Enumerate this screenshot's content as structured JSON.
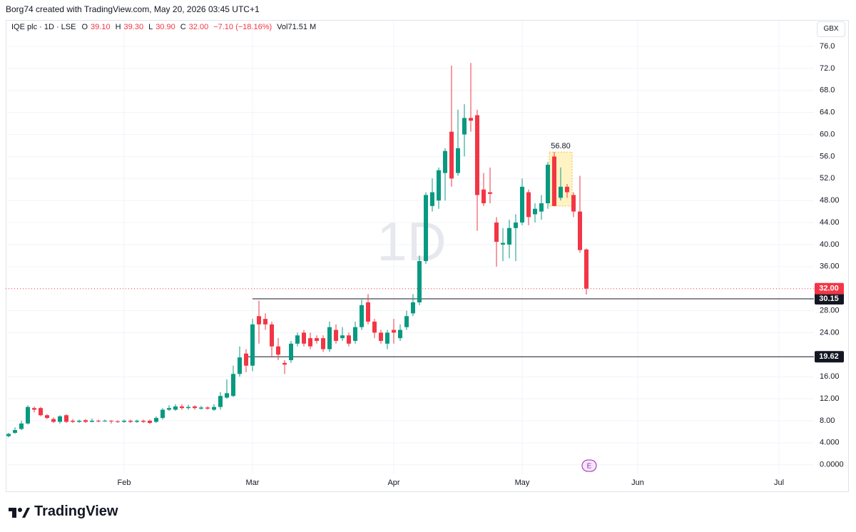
{
  "page": {
    "attribution": "Borg74 created with TradingView.com, May 20, 2026 03:45 UTC+1",
    "logo": "TradingView"
  },
  "chart_data": {
    "type": "candlestick",
    "symbol": "IQE plc · 1D · LSE",
    "ohlc_labels": [
      "O",
      "H",
      "L",
      "C"
    ],
    "ohlc_values": [
      "39.10",
      "39.30",
      "30.90",
      "32.00"
    ],
    "change": "−7.10 (−18.16%)",
    "volume": "Vol71.51 M",
    "currency": "GBX",
    "watermark": "1D",
    "up_color": "#089981",
    "down_color": "#f23645",
    "grid": true,
    "categories": [
      null,
      null,
      null,
      null,
      null,
      null,
      null,
      null,
      null,
      null,
      null,
      null,
      null,
      null,
      null,
      null,
      null,
      null,
      "Feb",
      null,
      null,
      null,
      null,
      null,
      null,
      null,
      null,
      null,
      null,
      null,
      null,
      null,
      null,
      null,
      null,
      null,
      null,
      null,
      "Mar",
      null,
      null,
      null,
      null,
      null,
      null,
      null,
      null,
      null,
      null,
      null,
      null,
      null,
      null,
      null,
      null,
      null,
      null,
      null,
      null,
      null,
      "Apr",
      null,
      null,
      null,
      null,
      null,
      null,
      null,
      null,
      null,
      null,
      null,
      null,
      null,
      null,
      null,
      null,
      null,
      null,
      null,
      "May",
      null,
      null,
      null,
      null,
      null,
      null,
      null,
      null,
      null,
      null,
      null,
      null,
      null,
      null,
      null,
      null,
      null,
      "Jun",
      null,
      null,
      null,
      null,
      null,
      null,
      null,
      null,
      null,
      null,
      null,
      null,
      null,
      null,
      null,
      null,
      null,
      null,
      null,
      null,
      null,
      "Jul",
      null,
      null,
      null,
      null,
      null
    ],
    "open": [
      5.2,
      5.8,
      6.5,
      7.5,
      10.3,
      10.3,
      9.0,
      8.3,
      7.8,
      9.0,
      8.0,
      7.8,
      8.1,
      7.8,
      8.0,
      7.9,
      8.0,
      7.9,
      7.8,
      8.0,
      7.8,
      8.0,
      8.0,
      7.8,
      8.5,
      10.0,
      10.0,
      10.6,
      10.3,
      10.6,
      10.2,
      10.4,
      10.0,
      10.5,
      12.2,
      12.5,
      16.5,
      20.2,
      18.0,
      27.0,
      26.5,
      25.5,
      21.5,
      18.5,
      19.0,
      22.0,
      24.0,
      23.0,
      23.0,
      23.0,
      21.0,
      24.5,
      23.0,
      23.5,
      22.5,
      25.0,
      29.5,
      26.0,
      24.0,
      22.0,
      24.5,
      23.0,
      25.0,
      27.5,
      29.5,
      37.0,
      47.0,
      48.0,
      53.0,
      60.5,
      53.0,
      60.0,
      63.0,
      63.5,
      50.0,
      49.5,
      44.0,
      40.0,
      40.0,
      43.0,
      44.0,
      49.5,
      45.5,
      46.0,
      47.5,
      56.0,
      48.5,
      50.5,
      49.0,
      46.0,
      39.1,
      null,
      null,
      null,
      null,
      null,
      null,
      null,
      null,
      null,
      null,
      null,
      null,
      null,
      null,
      null,
      null,
      null,
      null,
      null,
      null,
      null,
      null,
      null,
      null,
      null,
      null,
      null,
      null,
      null,
      null,
      null,
      null,
      null,
      null,
      null
    ],
    "high": [
      5.8,
      6.8,
      8.0,
      10.8,
      10.6,
      10.5,
      9.2,
      8.6,
      9.0,
      9.2,
      8.3,
      8.2,
      8.3,
      8.4,
      8.2,
      8.2,
      8.1,
      8.1,
      8.2,
      8.2,
      8.2,
      8.2,
      8.2,
      8.8,
      10.3,
      10.8,
      11.0,
      11.0,
      10.9,
      10.8,
      10.7,
      10.6,
      11.0,
      13.2,
      15.5,
      18.0,
      21.5,
      21.0,
      26.5,
      29.8,
      27.5,
      26.0,
      23.0,
      19.0,
      22.5,
      24.0,
      24.5,
      24.0,
      23.5,
      23.5,
      26.0,
      25.5,
      25.0,
      24.0,
      26.0,
      30.0,
      31.0,
      26.5,
      24.5,
      24.5,
      26.5,
      25.5,
      28.0,
      31.0,
      38.0,
      49.5,
      52.0,
      54.0,
      57.5,
      72.5,
      64.5,
      65.5,
      73.0,
      64.5,
      53.0,
      54.0,
      45.0,
      43.0,
      44.5,
      45.5,
      52.0,
      50.0,
      47.5,
      49.0,
      55.0,
      56.8,
      54.0,
      51.0,
      49.5,
      52.5,
      39.3,
      null,
      null,
      null,
      null,
      null,
      null,
      null,
      null,
      null,
      null,
      null,
      null,
      null,
      null,
      null,
      null,
      null,
      null,
      null,
      null,
      null,
      null,
      null,
      null,
      null,
      null,
      null,
      null,
      null,
      null,
      null,
      null,
      null,
      null,
      null
    ],
    "low": [
      5.0,
      5.6,
      6.3,
      7.3,
      9.5,
      8.8,
      8.3,
      7.6,
      7.5,
      7.6,
      7.6,
      7.6,
      7.6,
      7.7,
      7.7,
      7.8,
      7.5,
      7.6,
      7.6,
      7.6,
      7.6,
      7.6,
      7.4,
      7.6,
      8.2,
      9.8,
      9.8,
      10.0,
      10.0,
      10.0,
      10.0,
      10.0,
      9.8,
      10.0,
      12.0,
      12.3,
      16.0,
      16.8,
      17.0,
      22.0,
      24.5,
      19.5,
      19.0,
      16.5,
      18.5,
      21.5,
      21.5,
      21.0,
      22.0,
      20.5,
      20.5,
      22.0,
      22.5,
      21.5,
      22.0,
      24.5,
      25.5,
      23.0,
      22.0,
      21.0,
      22.0,
      22.5,
      24.5,
      27.0,
      29.0,
      36.5,
      46.0,
      46.5,
      48.0,
      50.5,
      52.5,
      56.0,
      60.5,
      42.5,
      47.0,
      47.5,
      36.0,
      37.0,
      37.5,
      37.0,
      43.5,
      43.5,
      44.0,
      44.5,
      46.5,
      47.0,
      48.0,
      48.5,
      45.0,
      38.5,
      30.9,
      null,
      null,
      null,
      null,
      null,
      null,
      null,
      null,
      null,
      null,
      null,
      null,
      null,
      null,
      null,
      null,
      null,
      null,
      null,
      null,
      null,
      null,
      null,
      null,
      null,
      null,
      null,
      null,
      null,
      null,
      null,
      null,
      null,
      null,
      null
    ],
    "close": [
      5.6,
      6.3,
      7.5,
      10.5,
      10.0,
      9.0,
      8.5,
      7.8,
      8.8,
      7.8,
      7.8,
      8.0,
      7.8,
      8.0,
      7.9,
      8.0,
      7.9,
      7.8,
      8.0,
      7.8,
      8.0,
      7.8,
      7.6,
      8.5,
      10.0,
      10.3,
      10.6,
      10.3,
      10.5,
      10.3,
      10.4,
      10.2,
      10.5,
      12.5,
      13.0,
      16.5,
      19.5,
      18.0,
      25.5,
      25.5,
      25.5,
      21.5,
      20.0,
      18.2,
      22.0,
      23.5,
      22.0,
      21.5,
      22.5,
      21.0,
      25.0,
      22.5,
      23.5,
      22.0,
      25.0,
      29.0,
      26.0,
      24.0,
      22.5,
      24.0,
      24.0,
      24.5,
      27.0,
      29.5,
      37.0,
      49.0,
      49.5,
      53.5,
      57.0,
      52.0,
      57.5,
      63.0,
      62.5,
      49.0,
      47.5,
      49.2,
      40.5,
      40.3,
      43.0,
      44.0,
      50.5,
      45.0,
      46.5,
      47.5,
      54.5,
      47.0,
      50.5,
      49.5,
      46.0,
      39.0,
      32.0,
      null,
      null,
      null,
      null,
      null,
      null,
      null,
      null,
      null,
      null,
      null,
      null,
      null,
      null,
      null,
      null,
      null,
      null,
      null,
      null,
      null,
      null,
      null,
      null,
      null,
      null,
      null,
      null,
      null,
      null,
      null,
      null,
      null,
      null,
      null
    ],
    "ylim": [
      -4.7,
      77.3
    ],
    "yticks": [
      {
        "value": 0,
        "label": "0.0000"
      },
      {
        "value": 4,
        "label": "4.000"
      },
      {
        "value": 8,
        "label": "8.00"
      },
      {
        "value": 12,
        "label": "12.00"
      },
      {
        "value": 16,
        "label": "16.00"
      },
      {
        "value": 24,
        "label": "24.00"
      },
      {
        "value": 28,
        "label": "28.00"
      },
      {
        "value": 36,
        "label": "36.00"
      },
      {
        "value": 40,
        "label": "40.00"
      },
      {
        "value": 44,
        "label": "44.00"
      },
      {
        "value": 48,
        "label": "48.00"
      },
      {
        "value": 52,
        "label": "52.0"
      },
      {
        "value": 56,
        "label": "56.0"
      },
      {
        "value": 60,
        "label": "60.0"
      },
      {
        "value": 64,
        "label": "64.0"
      },
      {
        "value": 68,
        "label": "68.0"
      },
      {
        "value": 72,
        "label": "72.0"
      },
      {
        "value": 76,
        "label": "76.0"
      }
    ],
    "last_price": {
      "value": 32,
      "label": "32.00"
    },
    "horizontal_lines": [
      30.15,
      19.62
    ],
    "annotation": {
      "value": 56.8,
      "label": "56.80"
    }
  }
}
